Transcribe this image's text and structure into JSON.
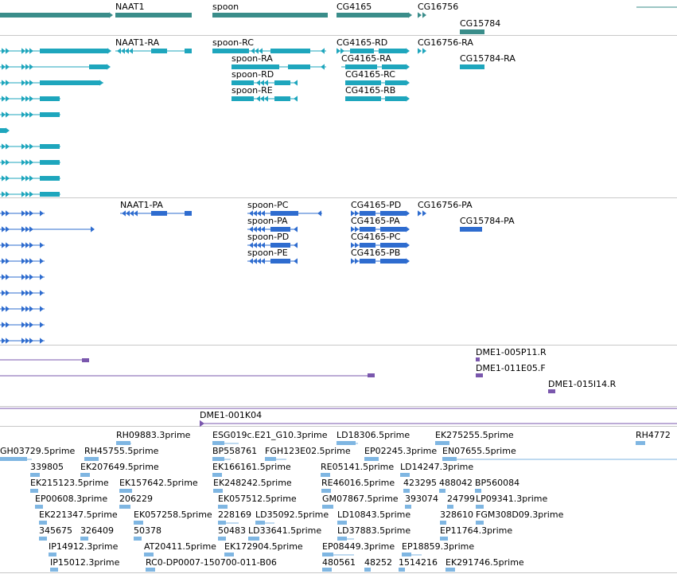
{
  "colors": {
    "gene": "#3a8d8a",
    "transcript": "#1ea6bd",
    "cds": "#2e6ccf",
    "clone": "#7a57ad",
    "est": "#7fb6e2",
    "divider": "#c8c8c8",
    "label": "#000000"
  },
  "tracks": {
    "genes": {
      "labels": [
        "NAAT1",
        "spoon",
        "CG4165",
        "CG16756",
        "CG15784"
      ]
    },
    "transcripts": {
      "labels": [
        "NAAT1-RA",
        "spoon-RC",
        "CG4165-RD",
        "CG16756-RA",
        "spoon-RA",
        "CG4165-RA",
        "CG15784-RA",
        "spoon-RD",
        "CG4165-RC",
        "spoon-RE",
        "CG4165-RB"
      ]
    },
    "proteins": {
      "labels": [
        "NAAT1-PA",
        "spoon-PC",
        "CG4165-PD",
        "CG16756-PA",
        "spoon-PA",
        "CG4165-PA",
        "CG15784-PA",
        "spoon-PD",
        "CG4165-PC",
        "spoon-PE",
        "CG4165-PB"
      ]
    },
    "clone_ends": {
      "labels": [
        "DME1-005P11.R",
        "DME1-011E05.F",
        "DME1-015I14.R"
      ]
    },
    "bac": {
      "labels": [
        "DME1-001K04"
      ]
    },
    "ests": {
      "labels": [
        "RH09883.3prime",
        "ESG019c.E21_G10.3prime",
        "LD18306.5prime",
        "EK275255.5prime",
        "RH4772",
        "GH03729.5prime",
        "RH45755.5prime",
        "BP558761",
        "FGH123E02.5prime",
        "EP02245.3prime",
        "EN07655.5prime",
        "339805",
        "EK207649.5prime",
        "EK166161.5prime",
        "RE05141.5prime",
        "LD14247.3prime",
        "EK215123.5prime",
        "EK157642.5prime",
        "EK248242.5prime",
        "RE46016.5prime",
        "423295",
        "488042",
        "BP560084",
        "EP00608.3prime",
        "206229",
        "EK057512.5prime",
        "GM07867.5prime",
        "393074",
        "24799",
        "LP09341.3prime",
        "EK221347.5prime",
        "EK057258.5prime",
        "228169",
        "LD35092.5prime",
        "LD10843.5prime",
        "328610",
        "FGM308D09.3prime",
        "345675",
        "326409",
        "50378",
        "50483",
        "LD33641.5prime",
        "LD37883.5prime",
        "EP11764.3prime",
        "IP14912.3prime",
        "AT20411.5prime",
        "EK172904.5prime",
        "EP08449.3prime",
        "EP18859.3prime",
        "IP15012.3prime",
        "RC0-DP0007-150700-011-B06",
        "480561",
        "48252",
        "1514216",
        "EK291746.5prime"
      ]
    }
  }
}
